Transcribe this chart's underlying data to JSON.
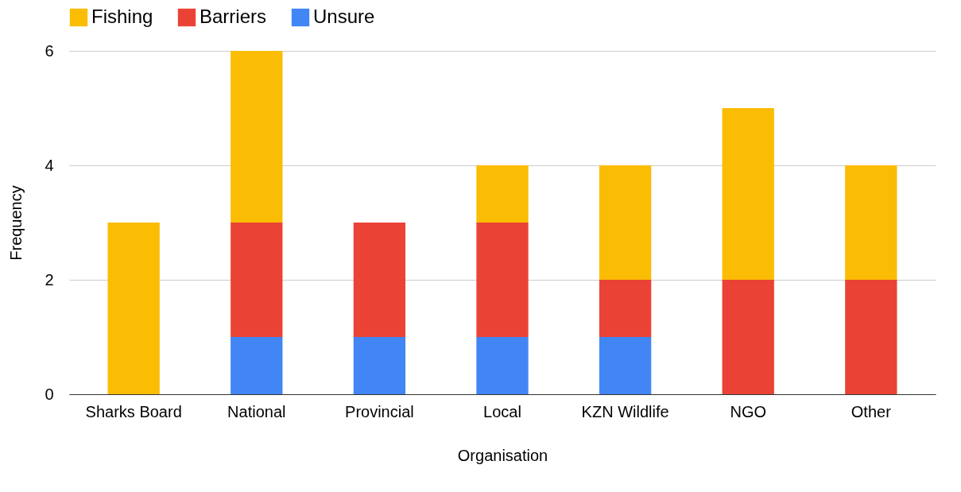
{
  "chart_data": {
    "type": "bar",
    "stacked": true,
    "xlabel": "Organisation",
    "ylabel": "Frequency",
    "categories": [
      "Sharks Board",
      "National",
      "Provincial",
      "Local",
      "KZN Wildlife",
      "NGO",
      "Other"
    ],
    "series": [
      {
        "name": "Unsure",
        "color": "#4285f4",
        "values": [
          0,
          1,
          1,
          1,
          1,
          0,
          0
        ]
      },
      {
        "name": "Barriers",
        "color": "#ea4335",
        "values": [
          0,
          2,
          2,
          2,
          1,
          2,
          2
        ]
      },
      {
        "name": "Fishing",
        "color": "#fbbc04",
        "values": [
          3,
          3,
          0,
          1,
          2,
          3,
          2
        ]
      }
    ],
    "ylim": [
      0,
      6
    ],
    "yticks": [
      0,
      2,
      4,
      6
    ],
    "grid": "y",
    "legend": "top"
  }
}
